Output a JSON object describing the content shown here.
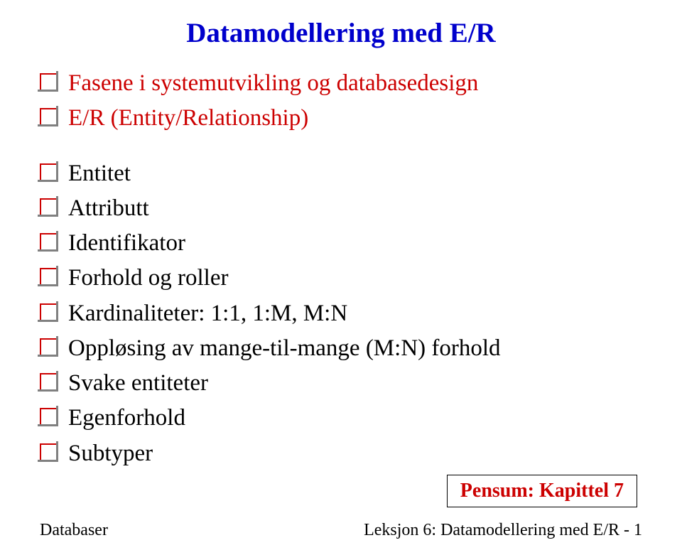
{
  "title": "Datamodellering med E/R",
  "bullets": {
    "items": [
      {
        "text": "Fasene i systemutvikling og databasedesign",
        "color": "red",
        "spaced": false
      },
      {
        "text": "E/R (Entity/Relationship)",
        "color": "red",
        "spaced": false
      },
      {
        "text": "Entitet",
        "color": "black",
        "spaced": true
      },
      {
        "text": "Attributt",
        "color": "black",
        "spaced": false
      },
      {
        "text": "Identifikator",
        "color": "black",
        "spaced": false
      },
      {
        "text": "Forhold og roller",
        "color": "black",
        "spaced": false
      },
      {
        "text": "Kardinaliteter: 1:1, 1:M, M:N",
        "color": "black",
        "spaced": false
      },
      {
        "text": "Oppløsing av mange-til-mange (M:N) forhold",
        "color": "black",
        "spaced": false
      },
      {
        "text": "Svake entiteter",
        "color": "black",
        "spaced": false
      },
      {
        "text": "Egenforhold",
        "color": "black",
        "spaced": false
      },
      {
        "text": "Subtyper",
        "color": "black",
        "spaced": false
      }
    ]
  },
  "pensum": "Pensum: Kapittel 7",
  "footer": {
    "left": "Databaser",
    "right": "Leksjon 6: Datamodellering med E/R - 1"
  },
  "styling": {
    "title_color": "#0000cc",
    "bullet_border_color": "#cc0000",
    "bullet_shadow_color": "#808080",
    "red_text_color": "#cc0000",
    "black_text_color": "#000000",
    "background_color": "#ffffff",
    "title_fontsize": 39,
    "bullet_fontsize": 33,
    "pensum_fontsize": 28,
    "footer_fontsize": 24
  }
}
